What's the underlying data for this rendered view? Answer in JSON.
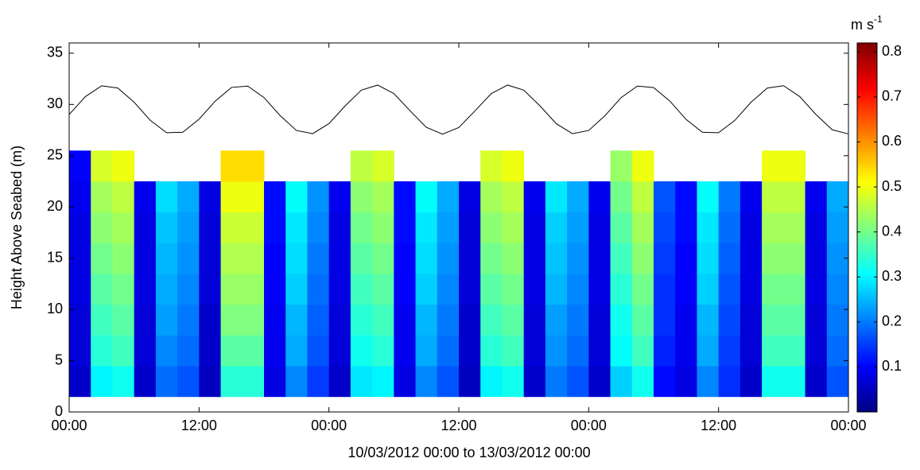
{
  "chart_data": {
    "type": "heatmap",
    "xlabel": "10/03/2012 00:00 to 13/03/2012 00:00",
    "ylabel": "Height Above Seabed (m)",
    "xlim": [
      0,
      72
    ],
    "xticks": [
      {
        "value": 0,
        "label": "00:00"
      },
      {
        "value": 12,
        "label": "12:00"
      },
      {
        "value": 24,
        "label": "00:00"
      },
      {
        "value": 36,
        "label": "12:00"
      },
      {
        "value": 48,
        "label": "00:00"
      },
      {
        "value": 60,
        "label": "12:00"
      },
      {
        "value": 72,
        "label": "00:00"
      }
    ],
    "ylim": [
      0,
      36
    ],
    "yticks": [
      0,
      5,
      10,
      15,
      20,
      25,
      30,
      35
    ],
    "colormap": "jet",
    "clim": [
      0,
      0.82
    ],
    "colorbar_ticks": [
      0.1,
      0.2,
      0.3,
      0.4,
      0.5,
      0.6,
      0.7,
      0.8
    ],
    "colorbar_label": {
      "base": "m s",
      "superscript": "-1"
    },
    "x_edges": [
      0,
      2,
      4,
      6,
      8,
      10,
      12,
      14,
      16,
      18,
      20,
      22,
      24,
      26,
      28,
      30,
      32,
      34,
      36,
      38,
      40,
      42,
      44,
      46,
      48,
      50,
      52,
      54,
      56,
      58,
      60,
      62,
      64,
      66,
      68,
      70,
      72
    ],
    "y_edges": [
      1.5,
      4.5,
      7.5,
      10.5,
      13.5,
      16.5,
      19.5,
      22.5,
      25.5
    ],
    "z": [
      [
        0.06,
        0.3,
        0.32,
        0.06,
        0.19,
        0.17,
        0.05,
        0.34,
        0.34,
        0.08,
        0.21,
        0.15,
        0.06,
        0.29,
        0.3,
        0.08,
        0.21,
        0.17,
        0.05,
        0.3,
        0.32,
        0.06,
        0.2,
        0.17,
        0.06,
        0.27,
        0.32,
        0.11,
        0.08,
        0.21,
        0.14,
        0.06,
        0.32,
        0.32,
        0.06,
        0.17
      ],
      [
        0.07,
        0.34,
        0.36,
        0.07,
        0.21,
        0.19,
        0.06,
        0.38,
        0.38,
        0.09,
        0.24,
        0.17,
        0.07,
        0.32,
        0.34,
        0.09,
        0.24,
        0.19,
        0.06,
        0.34,
        0.36,
        0.07,
        0.22,
        0.19,
        0.07,
        0.31,
        0.36,
        0.13,
        0.09,
        0.24,
        0.15,
        0.07,
        0.36,
        0.36,
        0.07,
        0.19
      ],
      [
        0.07,
        0.36,
        0.38,
        0.07,
        0.23,
        0.2,
        0.06,
        0.41,
        0.41,
        0.09,
        0.25,
        0.18,
        0.07,
        0.34,
        0.36,
        0.09,
        0.25,
        0.2,
        0.06,
        0.36,
        0.38,
        0.07,
        0.23,
        0.2,
        0.07,
        0.32,
        0.38,
        0.14,
        0.09,
        0.25,
        0.16,
        0.07,
        0.38,
        0.38,
        0.07,
        0.2
      ],
      [
        0.08,
        0.38,
        0.4,
        0.08,
        0.24,
        0.21,
        0.07,
        0.43,
        0.43,
        0.1,
        0.27,
        0.19,
        0.08,
        0.36,
        0.38,
        0.1,
        0.27,
        0.21,
        0.07,
        0.38,
        0.4,
        0.08,
        0.25,
        0.21,
        0.08,
        0.34,
        0.4,
        0.14,
        0.1,
        0.27,
        0.17,
        0.08,
        0.4,
        0.4,
        0.08,
        0.21
      ],
      [
        0.08,
        0.4,
        0.42,
        0.08,
        0.25,
        0.22,
        0.07,
        0.45,
        0.45,
        0.1,
        0.28,
        0.2,
        0.08,
        0.38,
        0.4,
        0.1,
        0.28,
        0.22,
        0.07,
        0.4,
        0.42,
        0.08,
        0.26,
        0.22,
        0.08,
        0.36,
        0.42,
        0.15,
        0.1,
        0.28,
        0.18,
        0.08,
        0.42,
        0.42,
        0.08,
        0.22
      ],
      [
        0.08,
        0.42,
        0.44,
        0.08,
        0.26,
        0.23,
        0.07,
        0.47,
        0.47,
        0.11,
        0.29,
        0.21,
        0.08,
        0.4,
        0.42,
        0.11,
        0.29,
        0.23,
        0.07,
        0.42,
        0.44,
        0.08,
        0.27,
        0.23,
        0.08,
        0.38,
        0.44,
        0.16,
        0.11,
        0.29,
        0.19,
        0.08,
        0.44,
        0.44,
        0.08,
        0.23
      ],
      [
        0.09,
        0.44,
        0.46,
        0.09,
        0.28,
        0.24,
        0.08,
        0.5,
        0.5,
        0.11,
        0.31,
        0.22,
        0.09,
        0.42,
        0.44,
        0.11,
        0.31,
        0.24,
        0.08,
        0.44,
        0.46,
        0.09,
        0.29,
        0.24,
        0.09,
        0.4,
        0.46,
        0.17,
        0.11,
        0.31,
        0.2,
        0.09,
        0.46,
        0.46,
        0.09,
        0.24
      ],
      [
        0.1,
        0.48,
        0.5,
        null,
        null,
        null,
        null,
        0.54,
        0.54,
        null,
        null,
        null,
        null,
        0.46,
        0.48,
        null,
        null,
        null,
        null,
        0.48,
        0.5,
        null,
        null,
        null,
        null,
        0.43,
        0.5,
        null,
        null,
        null,
        null,
        null,
        0.5,
        0.5,
        null,
        null
      ]
    ],
    "line": {
      "color": "#000000",
      "x": [
        0,
        1.5,
        3,
        4.5,
        6,
        7.5,
        9,
        10.5,
        12,
        13.5,
        15,
        16.5,
        18,
        19.5,
        21,
        22.5,
        24,
        25.5,
        27,
        28.5,
        30,
        31.5,
        33,
        34.5,
        36,
        37.5,
        39,
        40.5,
        42,
        43.5,
        45,
        46.5,
        48,
        49.5,
        51,
        52.5,
        54,
        55.5,
        57,
        58.5,
        60,
        61.5,
        63,
        64.5,
        66,
        67.5,
        69,
        70.5,
        72
      ],
      "values": [
        29.02,
        30.77,
        31.82,
        31.6,
        30.22,
        28.44,
        27.24,
        27.29,
        28.56,
        30.33,
        31.66,
        31.79,
        30.67,
        28.9,
        27.46,
        27.15,
        28.13,
        29.86,
        31.4,
        31.89,
        31.06,
        29.38,
        27.77,
        27.1,
        27.75,
        29.38,
        31.06,
        31.89,
        31.4,
        29.86,
        28.13,
        27.15,
        27.46,
        28.9,
        30.67,
        31.79,
        31.65,
        30.33,
        28.54,
        27.29,
        27.24,
        28.44,
        30.22,
        31.6,
        31.83,
        30.77,
        29.02,
        27.53,
        27.12
      ]
    }
  }
}
